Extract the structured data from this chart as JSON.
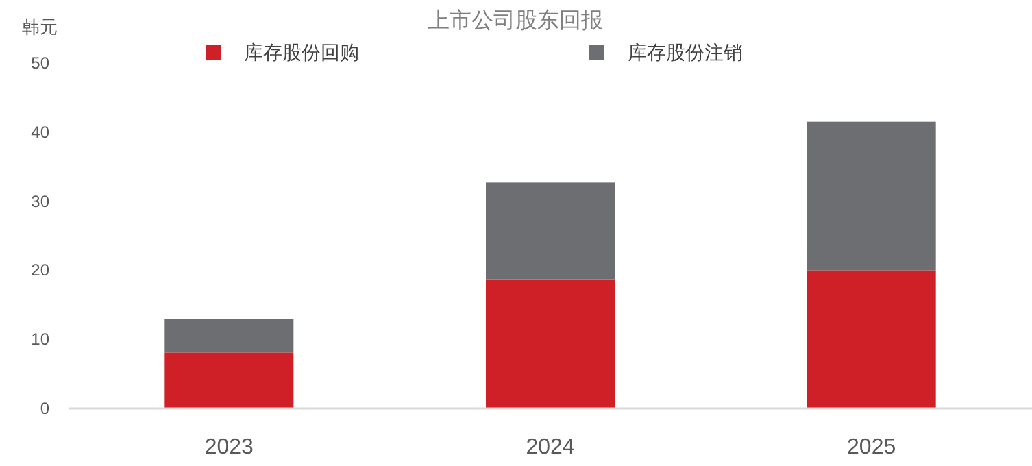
{
  "chart_data": {
    "type": "bar",
    "title": "上市公司股东回报",
    "ylabel": "韩元",
    "categories": [
      "2023",
      "2024",
      "2025"
    ],
    "stacked": true,
    "ylim": [
      0,
      50
    ],
    "yticks": [
      0,
      10,
      20,
      30,
      40,
      50
    ],
    "grid": false,
    "legend": "top",
    "series": [
      {
        "name": "库存股份回购",
        "color": "#d02027",
        "values": [
          8.1,
          18.7,
          20.0
        ]
      },
      {
        "name": "库存股份注销",
        "color": "#6d6e71",
        "values": [
          4.8,
          14.0,
          21.5
        ]
      }
    ]
  }
}
